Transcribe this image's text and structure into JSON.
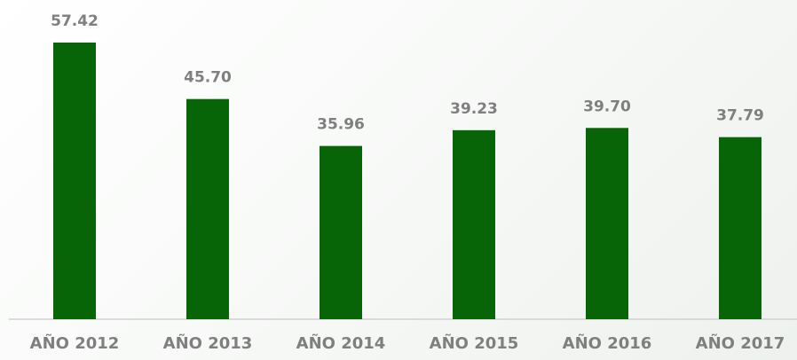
{
  "chart_data": {
    "type": "bar",
    "categories": [
      "AÑO 2012",
      "AÑO 2013",
      "AÑO 2014",
      "AÑO 2015",
      "AÑO 2016",
      "AÑO 2017"
    ],
    "values": [
      57.42,
      45.7,
      35.96,
      39.23,
      39.7,
      37.79
    ],
    "value_labels": [
      "57.42",
      "45.70",
      "35.96",
      "39.23",
      "39.70",
      "37.79"
    ],
    "color": "#076407"
  }
}
